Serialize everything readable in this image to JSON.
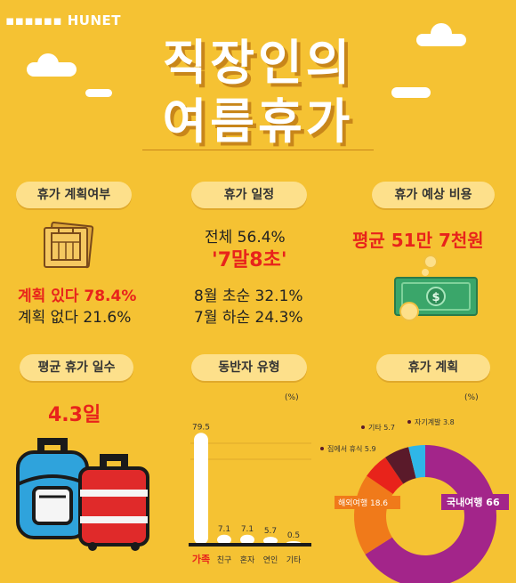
{
  "brand": {
    "logo": "HUNET"
  },
  "title": {
    "line1": "직장인의",
    "line2": "여름휴가"
  },
  "sections": {
    "plan": {
      "label": "휴가 계획여부",
      "yes": "계획 있다 78.4%",
      "no": "계획 없다 21.6%"
    },
    "schedule": {
      "label": "휴가 일정",
      "overall": "전체 56.4%",
      "highlight": "'7말8초'",
      "early_aug": "8월 초순 32.1%",
      "late_jul": "7월 하순 24.3%"
    },
    "cost": {
      "label": "휴가 예상 비용",
      "average": "평균 51만 7천원"
    },
    "days": {
      "label": "평균 휴가 일수",
      "value": "4.3일"
    },
    "companion": {
      "label": "동반자 유형",
      "unit": "(%)"
    },
    "plan_type": {
      "label": "휴가 계획",
      "unit": "(%)"
    }
  },
  "colors": {
    "background": "#f5c233",
    "accent_red": "#e8231b",
    "pill": "#fde08b"
  },
  "chart_data": [
    {
      "type": "bar",
      "title": "동반자 유형",
      "unit": "(%)",
      "categories": [
        "가족",
        "친구",
        "혼자",
        "연인",
        "기타"
      ],
      "values": [
        79.5,
        7.1,
        7.1,
        5.7,
        0.5
      ],
      "value_labels": [
        "79.5",
        "7.1",
        "7.1",
        "5.7",
        "0.5"
      ],
      "ylim": [
        0,
        100
      ]
    },
    {
      "type": "pie",
      "title": "휴가 계획",
      "unit": "(%)",
      "donut": true,
      "slices": [
        {
          "label": "국내여행 66",
          "value": 66,
          "color": "#a3258a"
        },
        {
          "label": "해외여행 18.6",
          "value": 18.6,
          "color": "#f07a1a"
        },
        {
          "label": "집에서 휴식 5.9",
          "value": 5.9,
          "color": "#e8231b"
        },
        {
          "label": "기타 5.7",
          "value": 5.7,
          "color": "#5a1a2a"
        },
        {
          "label": "자기계발 3.8",
          "value": 3.8,
          "color": "#2fb6e8"
        }
      ]
    }
  ]
}
